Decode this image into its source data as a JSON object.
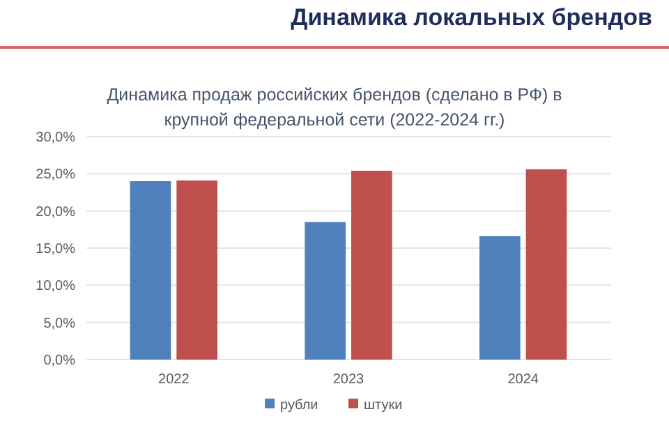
{
  "chart_data": {
    "type": "bar",
    "title": "Динамика локальных брендов",
    "subtitle": "Динамика продаж российских брендов (сделано в РФ) в крупной федеральной сети (2022-2024 гг.)",
    "categories": [
      "2022",
      "2023",
      "2024"
    ],
    "series": [
      {
        "name": "рубли",
        "color": "#4f81bd",
        "values": [
          24.0,
          18.5,
          16.6
        ]
      },
      {
        "name": "штуки",
        "color": "#c0504d",
        "values": [
          24.1,
          25.4,
          25.6
        ]
      }
    ],
    "ylim": [
      0,
      30
    ],
    "yticks": [
      {
        "value": 0,
        "label": "0,0%"
      },
      {
        "value": 5,
        "label": "5,0%"
      },
      {
        "value": 10,
        "label": "10,0%"
      },
      {
        "value": 15,
        "label": "15,0%"
      },
      {
        "value": 20,
        "label": "20,0%"
      },
      {
        "value": 25,
        "label": "25,0%"
      },
      {
        "value": 30,
        "label": "30,0%"
      }
    ],
    "grid": "y",
    "legend": "bottom"
  }
}
